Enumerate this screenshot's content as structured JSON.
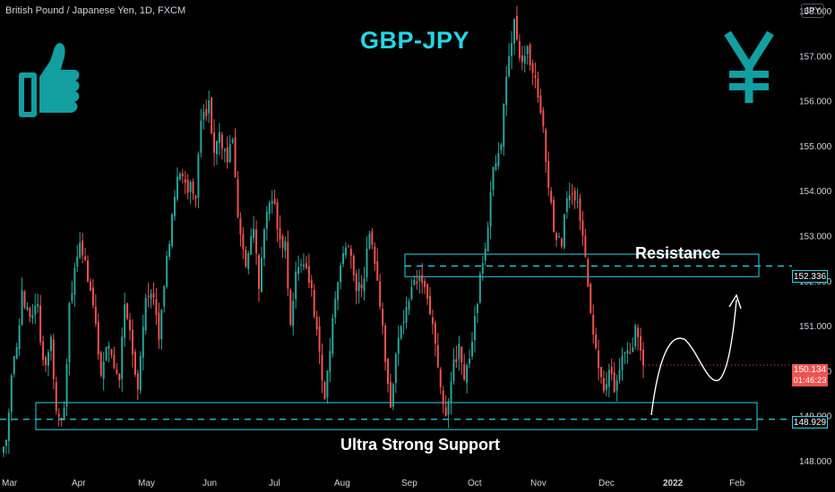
{
  "header": {
    "symbol_title": "British Pound / Japanese Yen, 1D, FXCM",
    "currency": "JPY"
  },
  "annotations": {
    "headline": "GBP-JPY",
    "resistance_label": "Resistance",
    "support_label": "Ultra Strong Support",
    "resistance_price": "152.336",
    "support_price": "148.929",
    "last_price": "150.134",
    "countdown": "01:46:23"
  },
  "colors": {
    "up": "#26a69a",
    "down": "#ef5350",
    "accent": "#23d7e6",
    "background": "#000000"
  },
  "icons": [
    "thumbs-up-icon",
    "yen-icon"
  ],
  "chart_data": {
    "type": "candlestick",
    "instrument": "GBP/JPY",
    "timeframe": "1D",
    "ylim": [
      147.75,
      158.25
    ],
    "y_ticks": [
      148.0,
      149.0,
      150.0,
      151.0,
      152.0,
      153.0,
      154.0,
      155.0,
      156.0,
      157.0,
      158.0
    ],
    "y_tick_labels": [
      "148.000",
      "149.000",
      "150.000",
      "151.000",
      "152.000",
      "153.000",
      "154.000",
      "155.000",
      "156.000",
      "157.000",
      "158.000"
    ],
    "x_tick_labels": [
      "Mar",
      "Apr",
      "May",
      "Jun",
      "Jul",
      "Aug",
      "Sep",
      "Oct",
      "Nov",
      "Dec",
      "2022",
      "Feb"
    ],
    "resistance_zone": [
      152.1,
      152.6
    ],
    "resistance_level": 152.336,
    "support_zone": [
      148.7,
      149.3
    ],
    "support_level": 148.929,
    "last_close": 150.134,
    "path_points": [
      [
        148.0,
        148.6
      ],
      [
        148.3,
        149.9
      ],
      [
        149.9,
        150.5
      ],
      [
        150.5,
        151.7
      ],
      [
        151.7,
        151.3
      ],
      [
        151.3,
        151.5
      ],
      [
        151.5,
        150.1
      ],
      [
        150.1,
        150.6
      ],
      [
        150.6,
        149.1
      ],
      [
        149.1,
        149.0
      ],
      [
        149.0,
        151.5
      ],
      [
        151.5,
        152.2
      ],
      [
        152.2,
        153.0
      ],
      [
        153.0,
        152.0
      ],
      [
        152.0,
        151.5
      ],
      [
        151.5,
        150.0
      ],
      [
        150.0,
        150.7
      ],
      [
        150.7,
        150.3
      ],
      [
        150.3,
        149.8
      ],
      [
        149.8,
        151.5
      ],
      [
        151.5,
        151.0
      ],
      [
        151.0,
        149.5
      ],
      [
        149.5,
        151.5
      ],
      [
        151.5,
        151.8
      ],
      [
        151.8,
        150.8
      ],
      [
        150.8,
        151.8
      ],
      [
        151.8,
        153.0
      ],
      [
        153.0,
        153.9
      ],
      [
        153.9,
        154.4
      ],
      [
        154.4,
        154.1
      ],
      [
        154.1,
        154.0
      ],
      [
        154.0,
        155.5
      ],
      [
        155.5,
        155.9
      ],
      [
        155.9,
        155.0
      ],
      [
        155.0,
        155.2
      ],
      [
        155.2,
        154.8
      ],
      [
        154.8,
        155.3
      ],
      [
        155.3,
        153.5
      ],
      [
        153.5,
        152.5
      ],
      [
        152.5,
        153.3
      ],
      [
        153.3,
        152.0
      ],
      [
        152.0,
        153.6
      ],
      [
        153.6,
        153.8
      ],
      [
        153.8,
        152.8
      ],
      [
        152.8,
        153.0
      ],
      [
        153.0,
        151.0
      ],
      [
        151.0,
        152.2
      ],
      [
        152.2,
        152.5
      ],
      [
        152.5,
        151.7
      ],
      [
        151.7,
        150.3
      ],
      [
        150.3,
        149.3
      ],
      [
        149.3,
        151.0
      ],
      [
        151.0,
        152.5
      ],
      [
        152.5,
        152.8
      ],
      [
        152.8,
        151.8
      ],
      [
        151.8,
        152.1
      ],
      [
        152.1,
        153.0
      ],
      [
        153.0,
        152.5
      ],
      [
        152.5,
        151.5
      ],
      [
        151.5,
        150.2
      ],
      [
        150.2,
        149.3
      ],
      [
        149.3,
        150.8
      ],
      [
        150.8,
        151.3
      ],
      [
        151.3,
        151.9
      ],
      [
        151.9,
        152.2
      ],
      [
        152.2,
        151.9
      ],
      [
        151.9,
        151.2
      ],
      [
        151.2,
        149.5
      ],
      [
        149.5,
        149.1
      ],
      [
        149.1,
        149.9
      ],
      [
        149.9,
        150.6
      ],
      [
        150.6,
        149.9
      ],
      [
        149.9,
        150.6
      ],
      [
        150.6,
        152.0
      ],
      [
        152.0,
        153.3
      ],
      [
        153.3,
        154.5
      ],
      [
        154.5,
        155.1
      ],
      [
        155.1,
        156.5
      ],
      [
        156.5,
        157.8
      ],
      [
        157.8,
        156.8
      ],
      [
        156.8,
        157.2
      ],
      [
        157.2,
        156.4
      ],
      [
        156.4,
        155.4
      ],
      [
        155.4,
        154.2
      ],
      [
        154.2,
        153.0
      ],
      [
        153.0,
        152.8
      ],
      [
        152.8,
        153.9
      ],
      [
        153.9,
        154.1
      ],
      [
        154.1,
        153.6
      ],
      [
        153.6,
        152.7
      ],
      [
        152.7,
        151.3
      ],
      [
        151.3,
        150.5
      ],
      [
        150.5,
        149.5
      ],
      [
        149.5,
        150.2
      ],
      [
        150.2,
        149.7
      ],
      [
        149.7,
        150.4
      ],
      [
        150.4,
        150.3
      ],
      [
        150.3,
        150.9
      ],
      [
        150.9,
        150.1
      ]
    ]
  }
}
